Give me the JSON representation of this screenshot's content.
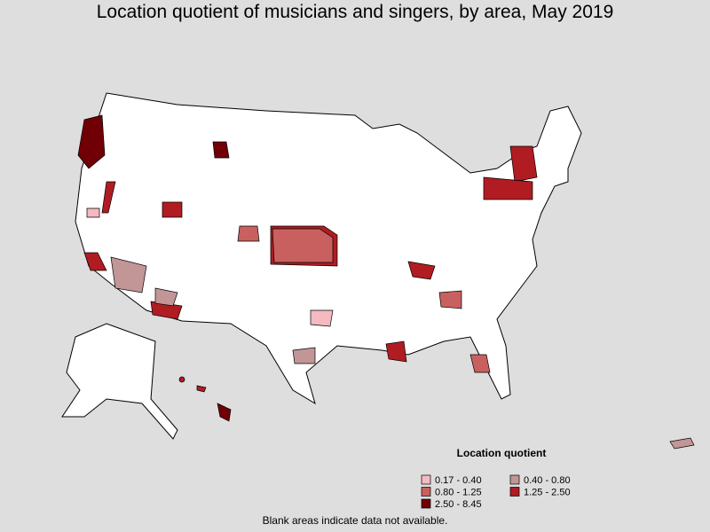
{
  "title": "Location quotient of musicians and singers, by area, May 2019",
  "legend": {
    "title": "Location quotient",
    "items": [
      {
        "label": "0.17 - 0.40",
        "color": "#f5b9c1"
      },
      {
        "label": "0.40 - 0.80",
        "color": "#c29597"
      },
      {
        "label": "0.80 - 1.25",
        "color": "#c8605f"
      },
      {
        "label": "1.25 - 2.50",
        "color": "#b01c22"
      },
      {
        "label": "2.50 - 8.45",
        "color": "#700006"
      }
    ]
  },
  "footnote": "Blank areas indicate data not available."
}
